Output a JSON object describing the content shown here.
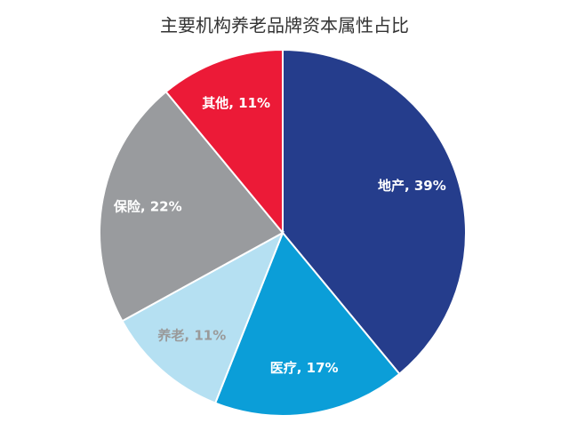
{
  "chart_data": {
    "type": "pie",
    "title": "主要机构养老品牌资本属性占比",
    "values": [
      39,
      17,
      11,
      22,
      11
    ],
    "value_labels": [
      "地产, 39%",
      "医疗, 17%",
      "养老, 11%",
      "保险, 22%",
      "其他, 11%"
    ],
    "colors": [
      "#253d8c",
      "#0b9ed8",
      "#b5e0f2",
      "#999b9e",
      "#ec1a37"
    ],
    "label_colors": [
      "#ffffff",
      "#ffffff",
      "#9a9a9a",
      "#ffffff",
      "#ffffff"
    ]
  }
}
